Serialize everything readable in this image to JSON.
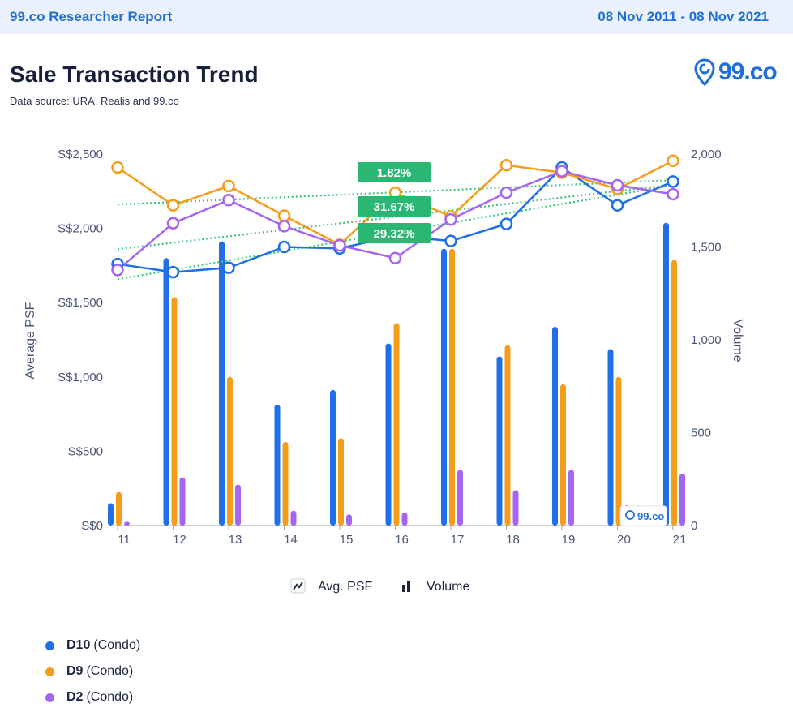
{
  "header": {
    "brand": "99.co Researcher Report",
    "date_range": "08 Nov 2011 - 08 Nov 2021"
  },
  "title": "Sale Transaction Trend",
  "subtitle": "Data source: URA, Realis and 99.co",
  "logo_text": "99.co",
  "watermark_text": "99.co",
  "colors": {
    "D10": "#1f6fe8",
    "D9": "#f59c1a",
    "D2": "#a565f2",
    "trend": "#3cc47c",
    "badge": "#2ab673"
  },
  "legend_chart": {
    "psf_label": "Avg. PSF",
    "volume_label": "Volume"
  },
  "legend_series": [
    {
      "code": "D10",
      "type": "(Condo)"
    },
    {
      "code": "D9",
      "type": "(Condo)"
    },
    {
      "code": "D2",
      "type": "(Condo)"
    }
  ],
  "chart_data": {
    "type": "bar+line",
    "categories": [
      "11",
      "12",
      "13",
      "14",
      "15",
      "16",
      "17",
      "18",
      "19",
      "20",
      "21"
    ],
    "y_left": {
      "label": "Average PSF",
      "range": [
        0,
        2500
      ],
      "ticks": [
        "S$0",
        "S$500",
        "S$1,000",
        "S$1,500",
        "S$2,000",
        "S$2,500"
      ]
    },
    "y_right": {
      "label": "Volume",
      "range": [
        0,
        2000
      ],
      "ticks": [
        "0",
        "500",
        "1,000",
        "1,500",
        "2,000"
      ]
    },
    "volume_series": [
      {
        "name": "D10",
        "values": [
          120,
          1440,
          1530,
          650,
          730,
          980,
          1490,
          910,
          1070,
          950,
          1630
        ]
      },
      {
        "name": "D9",
        "values": [
          180,
          1230,
          800,
          450,
          470,
          1090,
          1490,
          970,
          760,
          800,
          1430
        ]
      },
      {
        "name": "D2",
        "values": [
          20,
          260,
          220,
          80,
          60,
          70,
          300,
          190,
          300,
          110,
          280
        ]
      }
    ],
    "psf_series": [
      {
        "name": "D10",
        "values": [
          1760,
          1705,
          1735,
          1875,
          1865,
          1950,
          1915,
          2030,
          2410,
          2155,
          2315
        ]
      },
      {
        "name": "D9",
        "values": [
          2410,
          2155,
          2285,
          2085,
          1890,
          2240,
          2080,
          2425,
          2375,
          2265,
          2455
        ]
      },
      {
        "name": "D2",
        "values": [
          1720,
          2035,
          2190,
          2015,
          1885,
          1800,
          2060,
          2240,
          2385,
          2290,
          2230
        ]
      }
    ],
    "trend_badges": [
      "1.82%",
      "31.67%",
      "29.32%"
    ]
  }
}
